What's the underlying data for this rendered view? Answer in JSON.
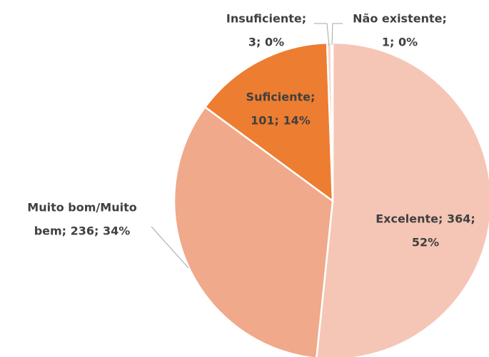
{
  "chart_data": {
    "type": "pie",
    "values": [
      364,
      236,
      101,
      3,
      1
    ],
    "value_labels": [
      [
        "Excelente; 364;",
        "52%"
      ],
      [
        "Muito bom/Muito",
        "bem; 236; 34%"
      ],
      [
        "Suficiente;",
        "101; 14%"
      ],
      [
        "Insuficiente;",
        "3; 0%"
      ],
      [
        "Não existente;",
        "1; 0%"
      ]
    ],
    "colors": [
      "#f5c6b6",
      "#f0a98b",
      "#ed7d31",
      "#f7d3c4",
      "#f9e0d5"
    ]
  }
}
